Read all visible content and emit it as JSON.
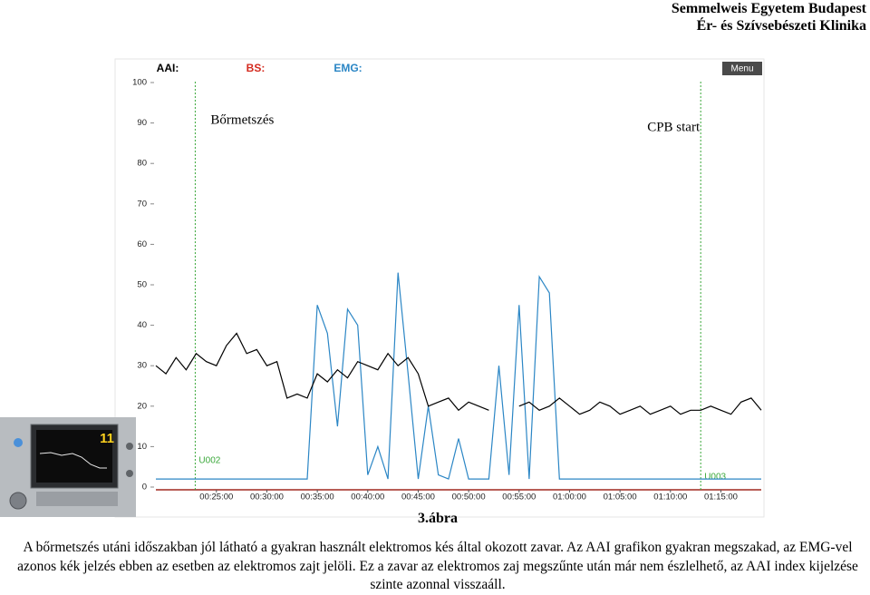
{
  "header": {
    "line1": "Semmelweis Egyetem Budapest",
    "line2": "Ér- és Szívsebészeti Klinika"
  },
  "chart_data": {
    "type": "line",
    "legend": [
      {
        "text": "AAI:",
        "color": "#000000"
      },
      {
        "text": "BS:",
        "color": "#d42a1e"
      },
      {
        "text": "EMG:",
        "color": "#2b86c5"
      }
    ],
    "menu": "Menu",
    "x": [
      19,
      20,
      21,
      22,
      23,
      24,
      25,
      26,
      27,
      28,
      29,
      30,
      31,
      32,
      33,
      34,
      35,
      36,
      37,
      38,
      39,
      40,
      41,
      42,
      43,
      44,
      45,
      46,
      47,
      48,
      49,
      50,
      51,
      52,
      53,
      54,
      55,
      56,
      57,
      58,
      59,
      60,
      61,
      62,
      63,
      64,
      65,
      66,
      67,
      68,
      69,
      70,
      71,
      72,
      73,
      74,
      75,
      76,
      77,
      78,
      79
    ],
    "series": [
      {
        "color": "#000000",
        "values": [
          30,
          28,
          32,
          29,
          33,
          31,
          30,
          35,
          38,
          33,
          34,
          30,
          31,
          22,
          23,
          22,
          28,
          26,
          29,
          27,
          31,
          30,
          29,
          33,
          30,
          32,
          28,
          20,
          21,
          22,
          19,
          21,
          20,
          19,
          null,
          null,
          20,
          21,
          19,
          20,
          22,
          20,
          18,
          19,
          21,
          20,
          18,
          19,
          20,
          18,
          19,
          20,
          18,
          19,
          19,
          20,
          19,
          18,
          21,
          22,
          19
        ]
      },
      {
        "color": "#2b86c5",
        "values": [
          2,
          2,
          2,
          2,
          2,
          2,
          2,
          2,
          2,
          2,
          2,
          2,
          2,
          2,
          2,
          2,
          45,
          38,
          15,
          44,
          40,
          3,
          10,
          2,
          53,
          28,
          2,
          20,
          3,
          2,
          12,
          2,
          2,
          2,
          30,
          3,
          45,
          2,
          52,
          48,
          2,
          2,
          2,
          2,
          2,
          2,
          2,
          2,
          2,
          2,
          2,
          2,
          2,
          2,
          2,
          2,
          2,
          2,
          2,
          2,
          2
        ]
      }
    ],
    "xlim": [
      19,
      79
    ],
    "ylim": [
      0,
      100
    ],
    "xticks": [
      {
        "value": 25,
        "label": "00:25:00"
      },
      {
        "value": 30,
        "label": "00:30:00"
      },
      {
        "value": 35,
        "label": "00:35:00"
      },
      {
        "value": 40,
        "label": "00:40:00"
      },
      {
        "value": 45,
        "label": "00:45:00"
      },
      {
        "value": 50,
        "label": "00:50:00"
      },
      {
        "value": 55,
        "label": "00:55:00"
      },
      {
        "value": 60,
        "label": "01:00:00"
      },
      {
        "value": 65,
        "label": "01:05:00"
      },
      {
        "value": 70,
        "label": "01:10:00"
      },
      {
        "value": 75,
        "label": "01:15:00"
      }
    ],
    "yticks": [
      0,
      10,
      20,
      30,
      40,
      50,
      60,
      70,
      80,
      90,
      100
    ],
    "markers": [
      {
        "x": 22.9,
        "label": "U002",
        "annotation": "Bőrmetszés"
      },
      {
        "x": 73,
        "label": "U003",
        "annotation": "CPB start"
      }
    ]
  },
  "device": {
    "display": "11"
  },
  "figure_caption": "3.ábra",
  "body_text": "A bőrmetszés utáni időszakban jól látható a gyakran használt elektromos kés által okozott zavar. Az AAI grafikon gyakran megszakad, az EMG-vel azonos kék jelzés ebben az esetben az elektromos zajt jelöli. Ez a zavar az elektromos zaj megszűnte után már nem észlelhető, az AAI index kijelzése szinte azonnal visszaáll."
}
